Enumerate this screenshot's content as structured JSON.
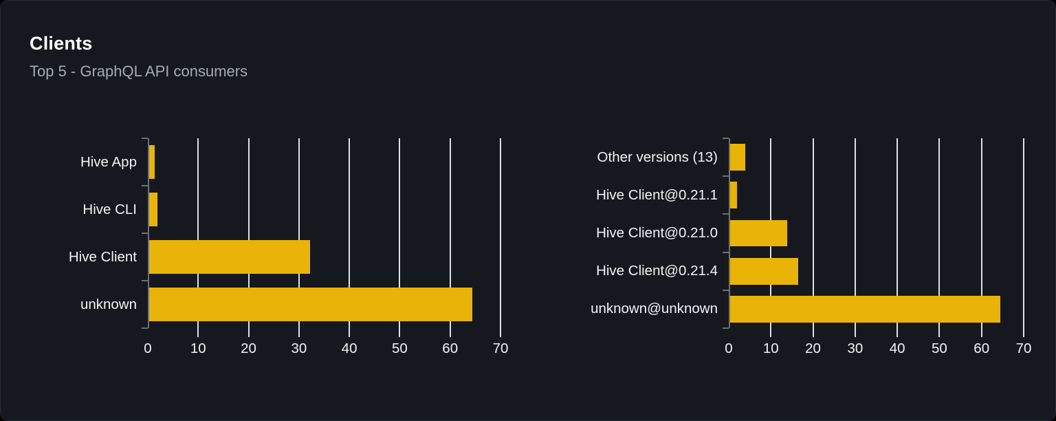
{
  "card": {
    "title": "Clients",
    "subtitle": "Top 5 - GraphQL API consumers"
  },
  "colors": {
    "page_bg": "#000000",
    "card_bg": "#15181e",
    "card_border": "#262b33",
    "bar": "#eab308",
    "gridline": "#dde1e9",
    "axis": "#6e7077",
    "title_text": "#ffffff",
    "subtitle_text": "#a6abb3",
    "label_text": "#f2f3f5"
  },
  "chart_data": [
    {
      "type": "bar",
      "orientation": "horizontal",
      "name": "clients-by-name",
      "categories": [
        "Hive App",
        "Hive CLI",
        "Hive Client",
        "unknown"
      ],
      "values": [
        1.3,
        1.9,
        32.2,
        64.4
      ],
      "xlim": [
        0,
        70
      ],
      "xticks": [
        0,
        10,
        20,
        30,
        40,
        50,
        60,
        70
      ],
      "grid": true,
      "legend": "none",
      "title": "",
      "xlabel": "",
      "ylabel": ""
    },
    {
      "type": "bar",
      "orientation": "horizontal",
      "name": "clients-by-version",
      "categories": [
        "Other versions (13)",
        "Hive Client@0.21.1",
        "Hive Client@0.21.0",
        "Hive Client@0.21.4",
        "unknown@unknown"
      ],
      "values": [
        3.9,
        1.9,
        13.8,
        16.4,
        64.5
      ],
      "xlim": [
        0,
        70
      ],
      "xticks": [
        0,
        10,
        20,
        30,
        40,
        50,
        60,
        70
      ],
      "grid": true,
      "legend": "none",
      "title": "",
      "xlabel": "",
      "ylabel": ""
    }
  ]
}
